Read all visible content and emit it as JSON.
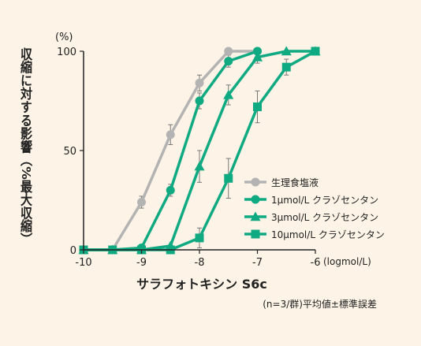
{
  "chart_data": {
    "type": "line",
    "y_unit": "(%)",
    "ylabel": "収縮に対する影響（%最大収縮）",
    "xlabel": "サラフォトキシン S6c",
    "x_unit": "(logmol/L)",
    "footnote": "(n=3/群)平均値±標準誤差",
    "xlim": [
      -10,
      -6
    ],
    "ylim": [
      0,
      100
    ],
    "xticks": [
      -10,
      -9,
      -8,
      -7,
      -6
    ],
    "xtick_labels": [
      "-10",
      "-9",
      "-8",
      "-7",
      "-6"
    ],
    "yticks": [
      0,
      50,
      100
    ],
    "ytick_labels": [
      "0",
      "50",
      "100"
    ],
    "grid": false,
    "legend_position": "center-right",
    "series": [
      {
        "name": "生理食塩液",
        "color": "#b3b3b3",
        "marker": "circle",
        "x": [
          -10,
          -9.5,
          -9,
          -8.5,
          -8,
          -7.5,
          -7
        ],
        "y": [
          0,
          0,
          24,
          58,
          84,
          100,
          100
        ],
        "err": [
          0,
          0,
          3,
          5,
          4,
          0,
          0
        ]
      },
      {
        "name": "1μmol/L クラゾセンタン",
        "color": "#0fa982",
        "marker": "circle",
        "x": [
          -10,
          -9.5,
          -9,
          -8.5,
          -8,
          -7.5,
          -7
        ],
        "y": [
          0,
          0,
          1,
          30,
          75,
          95,
          100
        ],
        "err": [
          0,
          0,
          0,
          3,
          4,
          3,
          0
        ]
      },
      {
        "name": "3μmol/L クラゾセンタン",
        "color": "#0fa982",
        "marker": "triangle",
        "x": [
          -10,
          -9.5,
          -9,
          -8.5,
          -8,
          -7.5,
          -7,
          -6.5,
          -6
        ],
        "y": [
          0,
          0,
          0,
          2,
          42,
          78,
          97,
          100,
          100
        ],
        "err": [
          0,
          0,
          0,
          0,
          8,
          5,
          3,
          0,
          0
        ]
      },
      {
        "name": "10μmol/L クラゾセンタン",
        "color": "#0fa982",
        "marker": "square",
        "x": [
          -10,
          -9.5,
          -9,
          -8.5,
          -8,
          -7.5,
          -7,
          -6.5,
          -6
        ],
        "y": [
          0,
          0,
          0,
          0,
          6,
          36,
          72,
          92,
          100
        ],
        "err": [
          0,
          0,
          0,
          0,
          5,
          10,
          8,
          4,
          0
        ]
      }
    ]
  }
}
